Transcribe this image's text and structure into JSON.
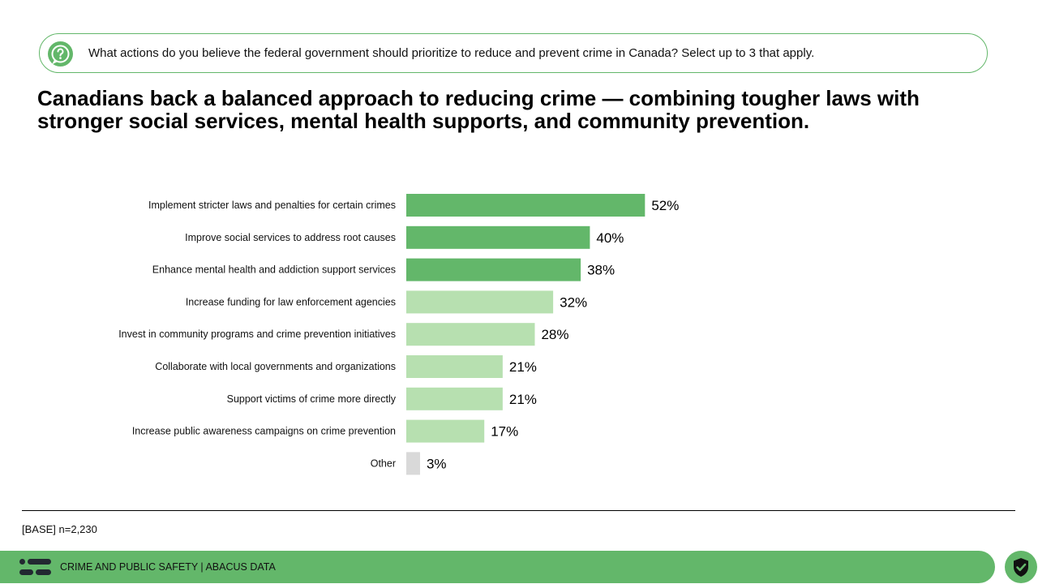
{
  "question": {
    "icon": "question-circle-icon",
    "text": "What actions do you believe the federal government should prioritize to reduce and prevent crime in Canada? Select up to 3 that apply."
  },
  "headline": "Canadians back a balanced approach to reducing crime — combining tougher laws with stronger social services, mental health supports, and community prevention.",
  "chart_data": {
    "type": "bar",
    "orientation": "horizontal",
    "title": "",
    "xlabel": "",
    "ylabel": "",
    "xlim": [
      0,
      100
    ],
    "grid": false,
    "categories": [
      "Implement stricter laws and penalties for certain crimes",
      "Improve social services to address root causes",
      "Enhance mental health and addiction support services",
      "Increase funding for law enforcement agencies",
      "Invest in community programs and crime prevention initiatives",
      "Collaborate with local governments and organizations",
      "Support victims of crime more directly",
      "Increase public awareness campaigns on crime prevention",
      "Other"
    ],
    "values": [
      52,
      40,
      38,
      32,
      28,
      21,
      21,
      17,
      3
    ],
    "value_labels": [
      "52%",
      "40%",
      "38%",
      "32%",
      "28%",
      "21%",
      "21%",
      "17%",
      "3%"
    ],
    "bar_colors": [
      "#63b76a",
      "#63b76a",
      "#63b76a",
      "#b7e0b0",
      "#b7e0b0",
      "#b7e0b0",
      "#b7e0b0",
      "#b7e0b0",
      "#d9d9d9"
    ]
  },
  "base_note": "[BASE] n=2,230",
  "footer": {
    "logo": "abacus-logo-icon",
    "text": "CRIME AND PUBLIC SAFETY  |  ABACUS DATA",
    "badge": "shield-check-icon"
  },
  "colors": {
    "accent": "#63b76a",
    "light": "#b7e0b0",
    "other": "#d9d9d9"
  }
}
